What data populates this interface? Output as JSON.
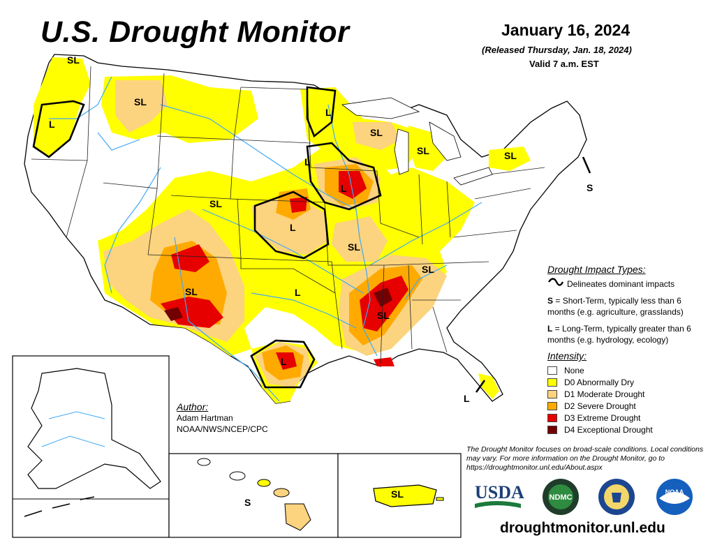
{
  "header": {
    "title": "U.S. Drought Monitor",
    "date": "January 16, 2024",
    "released": "(Released Thursday, Jan. 18, 2024)",
    "valid": "Valid 7 a.m. EST"
  },
  "impact_types": {
    "heading": "Drought Impact Types:",
    "delineates": "Delineates dominant impacts",
    "short_key": "S",
    "short_text": " = Short-Term, typically less than 6 months (e.g. agriculture, grasslands)",
    "long_key": "L",
    "long_text": " = Long-Term, typically greater than 6 months (e.g. hydrology, ecology)"
  },
  "intensity": {
    "heading": "Intensity:",
    "levels": [
      {
        "label": "None",
        "color": "#ffffff"
      },
      {
        "label": "D0 Abnormally Dry",
        "color": "#ffff00"
      },
      {
        "label": "D1 Moderate Drought",
        "color": "#fcd37f"
      },
      {
        "label": "D2 Severe Drought",
        "color": "#ffaa00"
      },
      {
        "label": "D3 Extreme Drought",
        "color": "#e60000"
      },
      {
        "label": "D4 Exceptional Drought",
        "color": "#730000"
      }
    ]
  },
  "author": {
    "heading": "Author:",
    "name": "Adam Hartman",
    "org": "NOAA/NWS/NCEP/CPC"
  },
  "note": "The Drought Monitor focuses on broad-scale conditions. Local conditions may vary. For more information on the Drought Monitor, go to https://droughtmonitor.unl.edu/About.aspx",
  "logos": {
    "usda": "USDA",
    "ndmc": "NDMC",
    "noaa": "NOAA"
  },
  "website": "droughtmonitor.unl.edu",
  "map_labels": {
    "pnw_sl": "SL",
    "or_l": "L",
    "mt_sl": "SL",
    "mn_l": "L",
    "wi_sl": "SL",
    "mi_sl": "SL",
    "ny_sl": "SL",
    "ne_s": "S",
    "ne_l": "L",
    "ia_l": "L",
    "co_sl": "SL",
    "ks_l": "L",
    "mo_sl": "SL",
    "nm_sl": "SL",
    "ok_l": "L",
    "tx_l": "L",
    "ms_sl": "SL",
    "tn_sl": "SL",
    "fl_l": "L",
    "hi_s": "S",
    "pr_sl": "SL"
  },
  "colors": {
    "none": "#ffffff",
    "d0": "#ffff00",
    "d1": "#fcd37f",
    "d2": "#ffaa00",
    "d3": "#e60000",
    "d4": "#730000",
    "water": "#3fa9f5",
    "border": "#000000"
  }
}
